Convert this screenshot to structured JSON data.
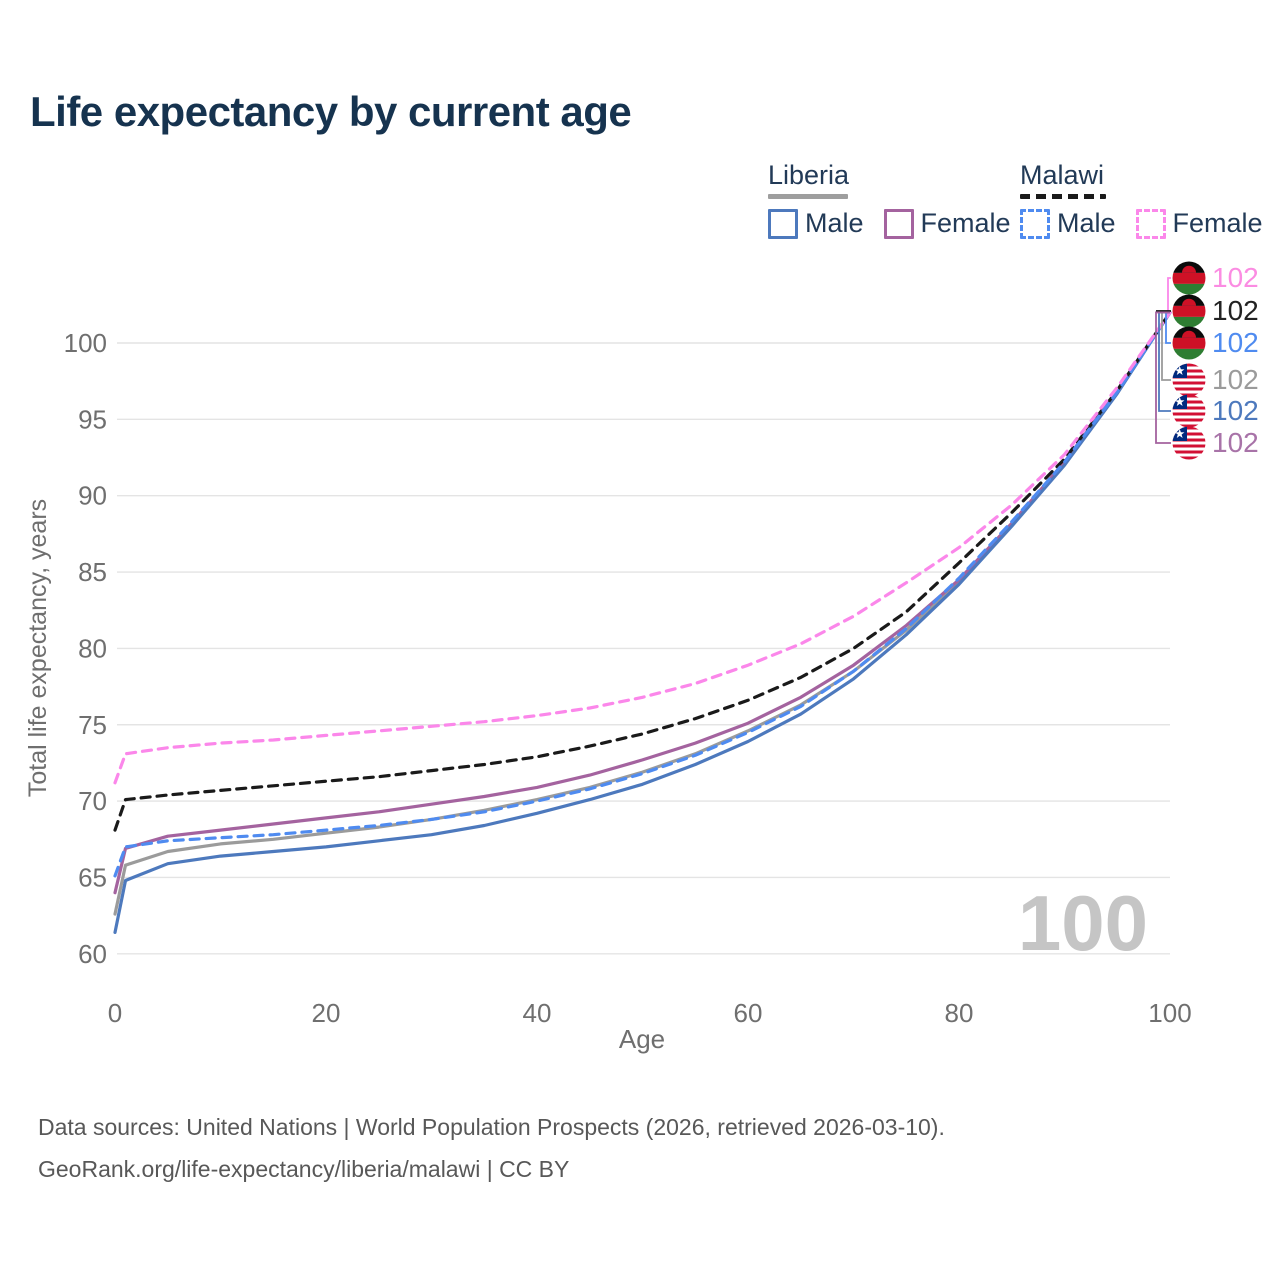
{
  "title": "Life expectancy by current age",
  "legend": {
    "groups": [
      {
        "country": "Liberia",
        "line_style": "solid",
        "underline_color": "#9e9e9e",
        "items": [
          {
            "label": "Male",
            "color": "#4d79bd",
            "dashed": false
          },
          {
            "label": "Female",
            "color": "#a4639f",
            "dashed": false
          }
        ]
      },
      {
        "country": "Malawi",
        "line_style": "dashed",
        "underline_color": "#1a1a1a",
        "items": [
          {
            "label": "Male",
            "color": "#4f8bf0",
            "dashed": true
          },
          {
            "label": "Female",
            "color": "#fb87ea",
            "dashed": true
          }
        ]
      }
    ]
  },
  "chart_data": {
    "type": "line",
    "title": "Life expectancy by current age",
    "xlabel": "Age",
    "ylabel": "Total life expectancy, years",
    "xlim": [
      0,
      100
    ],
    "ylim": [
      60,
      102
    ],
    "x_ticks": [
      0,
      20,
      40,
      60,
      80,
      100
    ],
    "y_ticks": [
      60,
      65,
      70,
      75,
      80,
      85,
      90,
      95,
      100
    ],
    "grid": "horizontal",
    "legend_position": "top-right",
    "watermark": "100",
    "x": [
      0,
      1,
      5,
      10,
      15,
      20,
      25,
      30,
      35,
      40,
      45,
      50,
      55,
      60,
      65,
      70,
      75,
      80,
      85,
      90,
      95,
      100
    ],
    "series": [
      {
        "name": "Malawi Female",
        "country": "Malawi",
        "sex": "Female",
        "flag": "malawi",
        "color": "#fb87ea",
        "label_color": "#fb8ce2",
        "dashed": true,
        "end_label": "102",
        "values": [
          71.2,
          73.1,
          73.5,
          73.8,
          74.0,
          74.3,
          74.6,
          74.9,
          75.2,
          75.6,
          76.1,
          76.8,
          77.7,
          78.9,
          80.3,
          82.1,
          84.3,
          86.6,
          89.4,
          92.7,
          97.1,
          102
        ]
      },
      {
        "name": "Malawi Both sexes",
        "country": "Malawi",
        "sex": "Both",
        "flag": "malawi",
        "color": "#1a1a1a",
        "label_color": "#222222",
        "dashed": true,
        "end_label": "102",
        "values": [
          68.1,
          70.1,
          70.4,
          70.7,
          71.0,
          71.3,
          71.6,
          72.0,
          72.4,
          72.9,
          73.6,
          74.4,
          75.4,
          76.6,
          78.1,
          80.0,
          82.4,
          85.6,
          88.9,
          92.4,
          96.9,
          102
        ]
      },
      {
        "name": "Malawi Male",
        "country": "Malawi",
        "sex": "Male",
        "flag": "malawi",
        "color": "#4f8bf0",
        "label_color": "#4f8bf0",
        "dashed": true,
        "end_label": "102",
        "values": [
          65.1,
          67.0,
          67.4,
          67.6,
          67.8,
          68.1,
          68.4,
          68.8,
          69.3,
          70.0,
          70.8,
          71.8,
          73.0,
          74.5,
          76.2,
          78.5,
          81.3,
          84.6,
          88.3,
          92.2,
          96.8,
          102
        ]
      },
      {
        "name": "Liberia Both sexes",
        "country": "Liberia",
        "sex": "Both",
        "flag": "liberia",
        "color": "#9b9b9b",
        "label_color": "#9b9b9b",
        "dashed": false,
        "end_label": "102",
        "values": [
          62.6,
          65.8,
          66.7,
          67.2,
          67.5,
          67.9,
          68.3,
          68.8,
          69.4,
          70.1,
          70.9,
          71.9,
          73.1,
          74.6,
          76.3,
          78.5,
          81.2,
          84.4,
          88.1,
          92.1,
          96.8,
          102
        ]
      },
      {
        "name": "Liberia Male",
        "country": "Liberia",
        "sex": "Male",
        "flag": "liberia",
        "color": "#4d79bd",
        "label_color": "#4d79bd",
        "dashed": false,
        "end_label": "102",
        "values": [
          61.4,
          64.8,
          65.9,
          66.4,
          66.7,
          67.0,
          67.4,
          67.8,
          68.4,
          69.2,
          70.1,
          71.1,
          72.4,
          73.9,
          75.7,
          78.0,
          80.9,
          84.2,
          88.0,
          92.0,
          96.7,
          102
        ]
      },
      {
        "name": "Liberia Female",
        "country": "Liberia",
        "sex": "Female",
        "flag": "liberia",
        "color": "#a4639f",
        "label_color": "#a873a8",
        "dashed": false,
        "end_label": "102",
        "values": [
          64.0,
          66.9,
          67.7,
          68.1,
          68.5,
          68.9,
          69.3,
          69.8,
          70.3,
          70.9,
          71.7,
          72.7,
          73.8,
          75.1,
          76.8,
          78.9,
          81.5,
          84.5,
          88.2,
          92.2,
          96.9,
          102
        ]
      }
    ]
  },
  "colors": {
    "title_text": "#16334f",
    "legend_text": "#223a57",
    "tick_text": "#6f6f6f",
    "gridline": "#e4e4e4",
    "watermark": "#c5c5c5",
    "footer_text": "#585858"
  },
  "footer": {
    "line1": "Data sources: United Nations | World Population Prospects (2026, retrieved 2026-03-10).",
    "line2": "GeoRank.org/life-expectancy/liberia/malawi | CC BY"
  }
}
